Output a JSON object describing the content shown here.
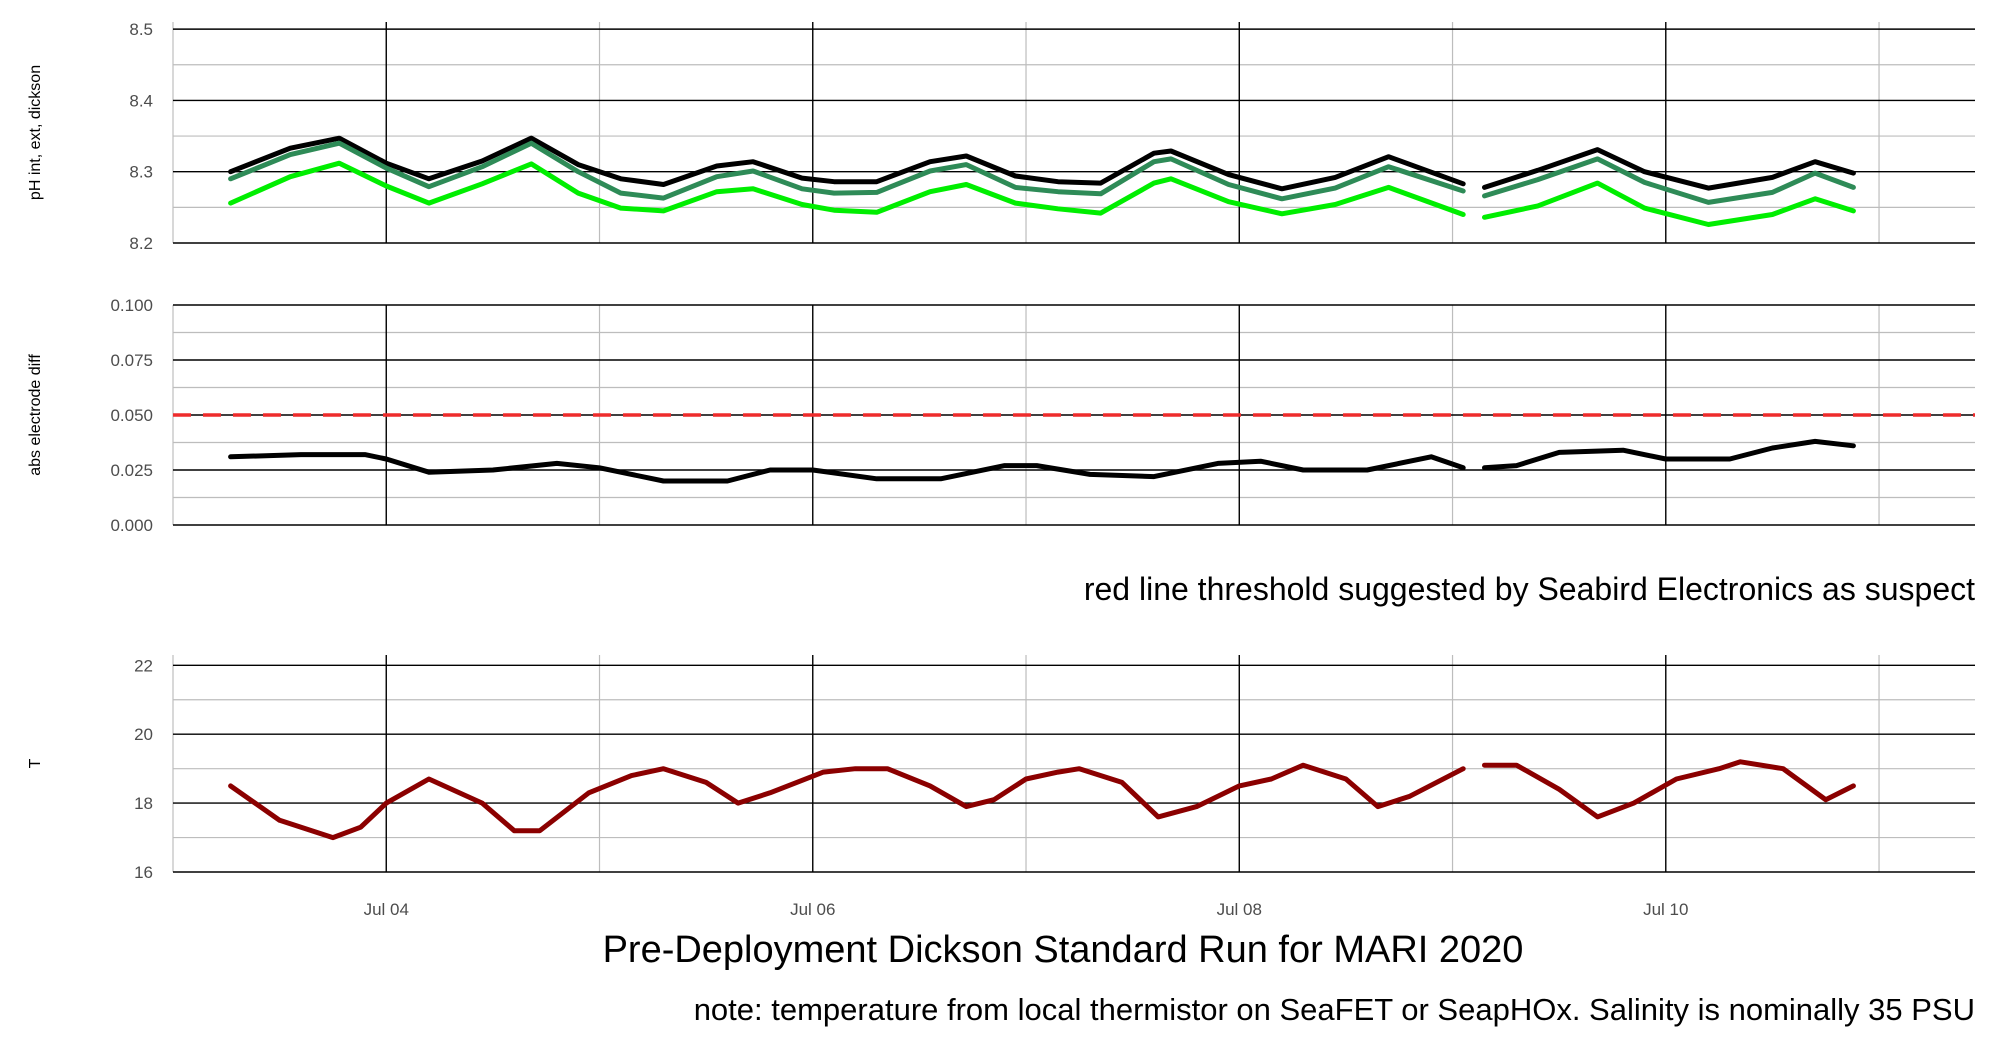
{
  "chart_data": {
    "type": "line",
    "title": "Pre-Deployment Dickson Standard Run for MARI 2020",
    "note": "note: temperature from local thermistor on SeaFET or SeapHOx. Salinity is nominally 35 PSU",
    "x_ticks": [
      "Jul 04",
      "Jul 06",
      "Jul 08",
      "Jul 10"
    ],
    "x_tick_values": [
      4,
      6,
      8,
      10
    ],
    "xlim": [
      3,
      11.45
    ],
    "x_unit": "day of July 2020",
    "grid": true,
    "gap": [
      9.05,
      9.15
    ],
    "panels": [
      {
        "id": "ph",
        "ylabel": "pH int, ext, dickson",
        "ylim": [
          8.2,
          8.51
        ],
        "y_ticks": [
          "8.2",
          "8.3",
          "8.4",
          "8.5"
        ],
        "y_tick_values": [
          8.2,
          8.3,
          8.4,
          8.5
        ],
        "series": [
          {
            "color": "#000000",
            "x": [
              3.27,
              3.55,
              3.78,
              4.0,
              4.2,
              4.45,
              4.68,
              4.9,
              5.1,
              5.3,
              5.55,
              5.72,
              5.95,
              6.1,
              6.3,
              6.55,
              6.72,
              6.95,
              7.15,
              7.35,
              7.6,
              7.68,
              7.95,
              8.2,
              8.45,
              8.7,
              9.05,
              9.15,
              9.4,
              9.68,
              9.9,
              10.2,
              10.5,
              10.7,
              10.88
            ],
            "y": [
              8.3,
              8.333,
              8.347,
              8.312,
              8.29,
              8.315,
              8.347,
              8.31,
              8.29,
              8.282,
              8.308,
              8.314,
              8.291,
              8.286,
              8.286,
              8.314,
              8.322,
              8.294,
              8.286,
              8.284,
              8.326,
              8.329,
              8.296,
              8.276,
              8.292,
              8.321,
              8.283,
              8.278,
              8.302,
              8.331,
              8.3,
              8.277,
              8.292,
              8.314,
              8.298
            ]
          },
          {
            "color": "#2e8b57",
            "x": [
              3.27,
              3.55,
              3.78,
              4.0,
              4.2,
              4.45,
              4.68,
              4.9,
              5.1,
              5.3,
              5.55,
              5.72,
              5.95,
              6.1,
              6.3,
              6.55,
              6.72,
              6.95,
              7.15,
              7.35,
              7.6,
              7.68,
              7.95,
              8.2,
              8.45,
              8.7,
              9.05,
              9.15,
              9.4,
              9.68,
              9.9,
              10.2,
              10.5,
              10.7,
              10.88
            ],
            "y": [
              8.29,
              8.324,
              8.34,
              8.305,
              8.279,
              8.307,
              8.34,
              8.3,
              8.27,
              8.263,
              8.293,
              8.301,
              8.276,
              8.27,
              8.271,
              8.301,
              8.31,
              8.278,
              8.272,
              8.269,
              8.314,
              8.318,
              8.282,
              8.262,
              8.277,
              8.307,
              8.273,
              8.266,
              8.289,
              8.318,
              8.285,
              8.257,
              8.271,
              8.298,
              8.278
            ]
          },
          {
            "color": "#00ee00",
            "x": [
              3.27,
              3.55,
              3.78,
              4.0,
              4.2,
              4.45,
              4.68,
              4.9,
              5.1,
              5.3,
              5.55,
              5.72,
              5.95,
              6.1,
              6.3,
              6.55,
              6.72,
              6.95,
              7.15,
              7.35,
              7.6,
              7.68,
              7.95,
              8.2,
              8.45,
              8.7,
              9.05,
              9.15,
              9.4,
              9.68,
              9.9,
              10.2,
              10.5,
              10.7,
              10.88
            ],
            "y": [
              8.256,
              8.293,
              8.312,
              8.28,
              8.256,
              8.283,
              8.311,
              8.27,
              8.249,
              8.245,
              8.272,
              8.276,
              8.254,
              8.246,
              8.243,
              8.272,
              8.282,
              8.256,
              8.248,
              8.242,
              8.284,
              8.29,
              8.258,
              8.241,
              8.254,
              8.278,
              8.24,
              8.236,
              8.252,
              8.284,
              8.249,
              8.226,
              8.24,
              8.262,
              8.245
            ]
          }
        ]
      },
      {
        "id": "diff",
        "ylabel": "abs electrode diff",
        "ylim": [
          0.0,
          0.1
        ],
        "y_ticks": [
          "0.000",
          "0.025",
          "0.050",
          "0.075",
          "0.100"
        ],
        "y_tick_values": [
          0.0,
          0.025,
          0.05,
          0.075,
          0.1
        ],
        "threshold": {
          "value": 0.05,
          "color": "#ee2c2c"
        },
        "threshold_caption": "red line threshold suggested by Seabird Electronics as suspect",
        "series": [
          {
            "color": "#000000",
            "x": [
              3.27,
              3.6,
              3.9,
              4.0,
              4.2,
              4.5,
              4.8,
              5.0,
              5.3,
              5.6,
              5.8,
              6.0,
              6.3,
              6.6,
              6.9,
              7.05,
              7.3,
              7.6,
              7.9,
              8.1,
              8.3,
              8.6,
              8.9,
              9.05,
              9.15,
              9.3,
              9.5,
              9.8,
              10.0,
              10.3,
              10.5,
              10.7,
              10.88
            ],
            "y": [
              0.031,
              0.032,
              0.032,
              0.03,
              0.024,
              0.025,
              0.028,
              0.026,
              0.02,
              0.02,
              0.025,
              0.025,
              0.021,
              0.021,
              0.027,
              0.027,
              0.023,
              0.022,
              0.028,
              0.029,
              0.025,
              0.025,
              0.031,
              0.026,
              0.026,
              0.027,
              0.033,
              0.034,
              0.03,
              0.03,
              0.035,
              0.038,
              0.036
            ]
          }
        ]
      },
      {
        "id": "temp",
        "ylabel": "T",
        "ylim": [
          16,
          22.3
        ],
        "y_ticks": [
          "16",
          "18",
          "20",
          "22"
        ],
        "y_tick_values": [
          16,
          18,
          20,
          22
        ],
        "series": [
          {
            "color": "#8b0000",
            "x": [
              3.27,
              3.5,
              3.75,
              3.88,
              4.0,
              4.2,
              4.45,
              4.6,
              4.72,
              4.95,
              5.15,
              5.3,
              5.5,
              5.65,
              5.8,
              6.05,
              6.2,
              6.35,
              6.55,
              6.72,
              6.85,
              7.0,
              7.15,
              7.25,
              7.45,
              7.62,
              7.8,
              8.0,
              8.15,
              8.3,
              8.5,
              8.65,
              8.8,
              9.05,
              9.15,
              9.3,
              9.5,
              9.68,
              9.85,
              10.05,
              10.25,
              10.35,
              10.55,
              10.75,
              10.88
            ],
            "y": [
              18.5,
              17.5,
              17.0,
              17.3,
              18.0,
              18.7,
              18.0,
              17.2,
              17.2,
              18.3,
              18.8,
              19.0,
              18.6,
              18.0,
              18.3,
              18.9,
              19.0,
              19.0,
              18.5,
              17.9,
              18.1,
              18.7,
              18.9,
              19.0,
              18.6,
              17.6,
              17.9,
              18.5,
              18.7,
              19.1,
              18.7,
              17.9,
              18.2,
              19.0,
              19.1,
              19.1,
              18.4,
              17.6,
              18.0,
              18.7,
              19.0,
              19.2,
              19.0,
              18.1,
              18.5
            ]
          }
        ]
      }
    ]
  }
}
